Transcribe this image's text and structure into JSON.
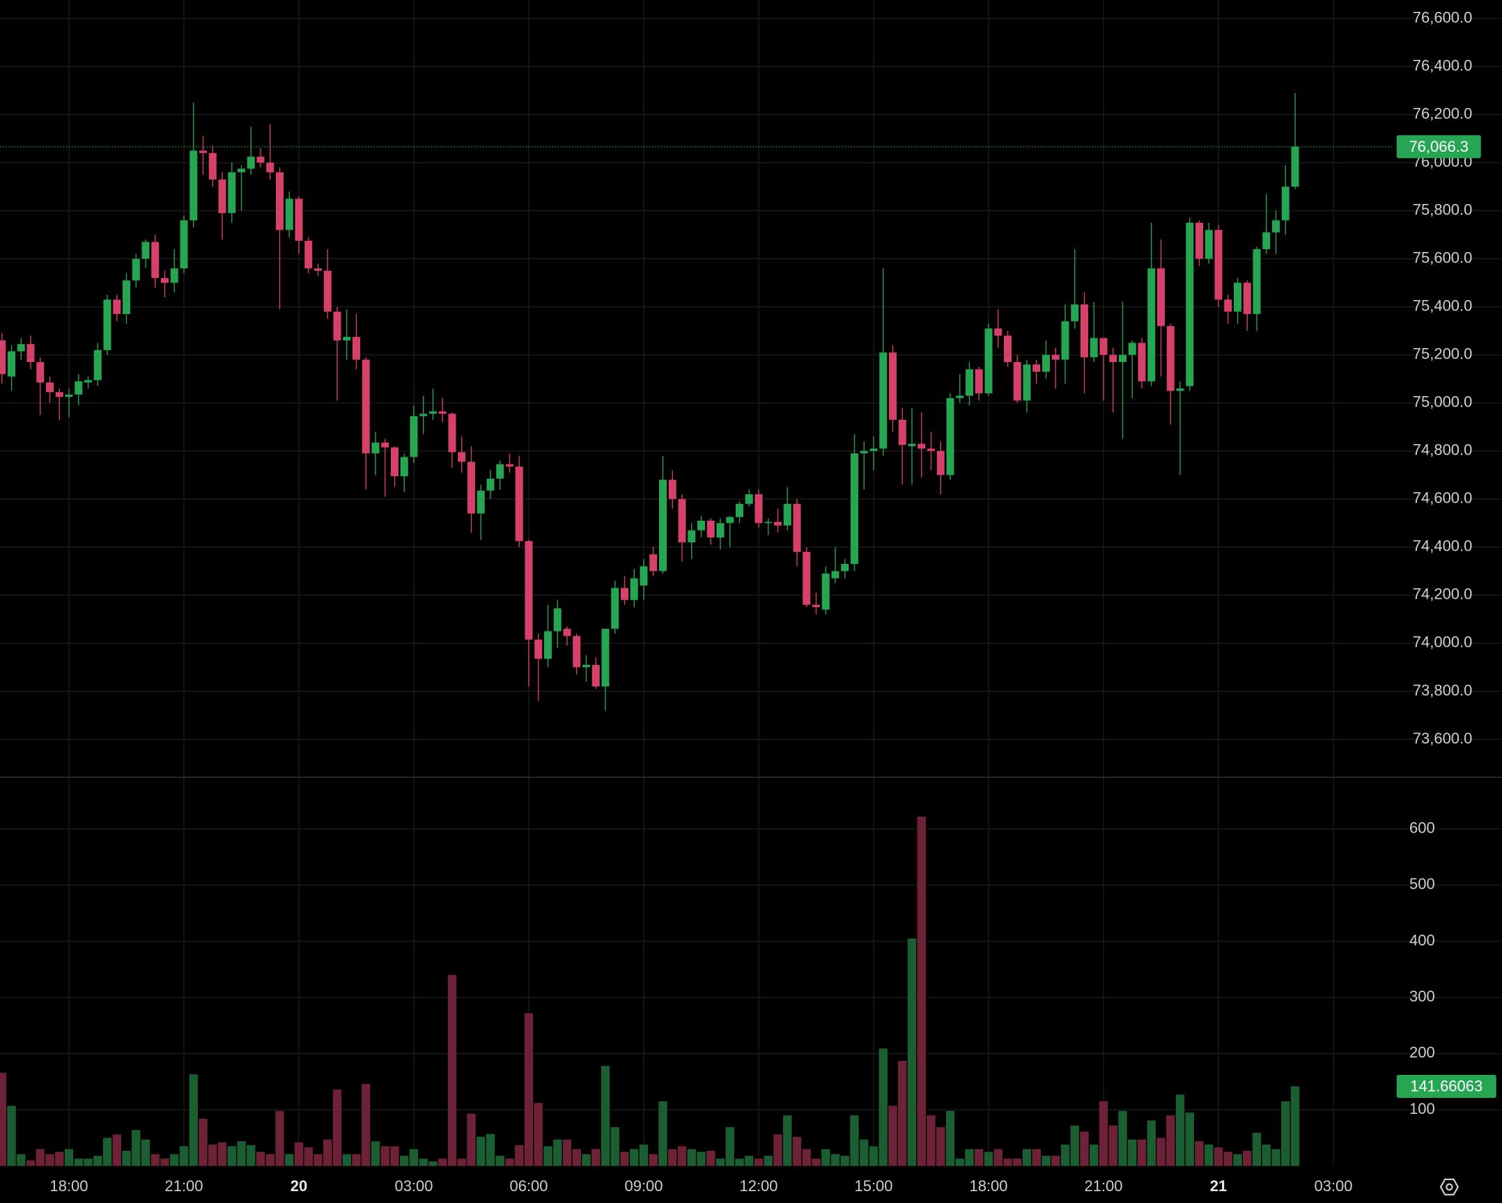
{
  "chart_data": {
    "type": "candlestick",
    "xlim": [
      -0.2,
      145.3
    ],
    "xticks": [
      {
        "value": 7,
        "label": "18:00"
      },
      {
        "value": 19,
        "label": "21:00"
      },
      {
        "value": 31,
        "label": "20"
      },
      {
        "value": 43,
        "label": "03:00"
      },
      {
        "value": 55,
        "label": "06:00"
      },
      {
        "value": 67,
        "label": "09:00"
      },
      {
        "value": 79,
        "label": "12:00"
      },
      {
        "value": 91,
        "label": "15:00"
      },
      {
        "value": 103,
        "label": "18:00"
      },
      {
        "value": 115,
        "label": "21:00"
      },
      {
        "value": 127,
        "label": "21"
      },
      {
        "value": 139,
        "label": "03:00"
      }
    ],
    "ylim": [
      73442,
      76677
    ],
    "yticks": [
      {
        "value": 73600,
        "label": "73,600.0"
      },
      {
        "value": 73800,
        "label": "73,800.0"
      },
      {
        "value": 74000,
        "label": "74,000.0"
      },
      {
        "value": 74200,
        "label": "74,200.0"
      },
      {
        "value": 74400,
        "label": "74,400.0"
      },
      {
        "value": 74600,
        "label": "74,600.0"
      },
      {
        "value": 74800,
        "label": "74,800.0"
      },
      {
        "value": 75000,
        "label": "75,000.0"
      },
      {
        "value": 75200,
        "label": "75,200.0"
      },
      {
        "value": 75400,
        "label": "75,400.0"
      },
      {
        "value": 75600,
        "label": "75,600.0"
      },
      {
        "value": 75800,
        "label": "75,800.0"
      },
      {
        "value": 76000,
        "label": "76,000.0"
      },
      {
        "value": 76200,
        "label": "76,200.0"
      },
      {
        "value": 76400,
        "label": "76,400.0"
      },
      {
        "value": 76600,
        "label": "76,600.0"
      }
    ],
    "volume_ylim": [
      0,
      692
    ],
    "volume_yticks": [
      100,
      200,
      300,
      400,
      500,
      600
    ],
    "grid": true,
    "up_color": "#26a653",
    "down_color": "#d6416a",
    "up_volume_color": "#1b5e31",
    "down_volume_color": "#6e2237",
    "price_marker": "76,066.3",
    "volume_marker": "141.66063",
    "open": [
      75260,
      75110,
      75215,
      75245,
      75170,
      75085,
      75045,
      75025,
      75035,
      75085,
      75095,
      75220,
      75430,
      75370,
      75510,
      75600,
      75670,
      75520,
      75500,
      75560,
      75760,
      76050,
      76040,
      75930,
      75790,
      75960,
      75975,
      76025,
      76000,
      75960,
      75720,
      75850,
      75675,
      75560,
      75550,
      75380,
      75260,
      75275,
      75180,
      74790,
      74835,
      74815,
      74695,
      74775,
      74945,
      74955,
      74965,
      74955,
      74795,
      74755,
      74540,
      74635,
      74685,
      74745,
      74735,
      74425,
      74015,
      73935,
      74050,
      74060,
      74030,
      73900,
      73910,
      73820,
      74060,
      74230,
      74180,
      74240,
      74370,
      74300,
      74680,
      74600,
      74420,
      74470,
      74510,
      74440,
      74500,
      74525,
      74580,
      74620,
      74500,
      74505,
      74490,
      74580,
      74380,
      74160,
      74140,
      74270,
      74300,
      74330,
      74790,
      74800,
      74810,
      75210,
      74930,
      74820,
      74830,
      74810,
      74800,
      74700,
      75020,
      75030,
      75140,
      75040,
      75310,
      75280,
      75170,
      75010,
      75160,
      75130,
      75200,
      75180,
      75340,
      75410,
      75190,
      75270,
      75200,
      75170,
      75200,
      75250,
      75090,
      75560,
      75320,
      75050,
      75070,
      75750,
      75600,
      75720,
      75430,
      75380,
      75500,
      75370,
      75640,
      75710,
      75760,
      75900
    ],
    "high": [
      75290,
      75240,
      75270,
      75280,
      75190,
      75110,
      75060,
      75060,
      75120,
      75110,
      75250,
      75450,
      75450,
      75540,
      75620,
      75680,
      75700,
      75550,
      75640,
      75780,
      76250,
      76110,
      76070,
      75960,
      76000,
      75990,
      76150,
      76060,
      76160,
      75980,
      75880,
      75860,
      75690,
      75580,
      75640,
      75400,
      75390,
      75370,
      75190,
      74880,
      74850,
      74820,
      74790,
      74990,
      75030,
      75060,
      75020,
      74960,
      74860,
      74820,
      74660,
      74720,
      74760,
      74790,
      74780,
      74430,
      74040,
      74160,
      74180,
      74070,
      74040,
      73950,
      73940,
      74060,
      74260,
      74280,
      74310,
      74350,
      74400,
      74780,
      74720,
      74620,
      74500,
      74530,
      74520,
      74520,
      74530,
      74590,
      74640,
      74640,
      74520,
      74560,
      74650,
      74600,
      74400,
      74210,
      74320,
      74400,
      74350,
      74870,
      74840,
      74860,
      75560,
      75240,
      74980,
      74980,
      74960,
      74880,
      74840,
      75040,
      75120,
      75170,
      75150,
      75330,
      75390,
      75300,
      75200,
      75180,
      75180,
      75260,
      75230,
      75410,
      75640,
      75460,
      75420,
      75270,
      75230,
      75420,
      75260,
      75270,
      75750,
      75680,
      75330,
      75090,
      75770,
      75760,
      75750,
      75740,
      75450,
      75520,
      75510,
      75650,
      75870,
      75800,
      75990,
      76290
    ],
    "low": [
      75080,
      75050,
      75180,
      75140,
      74950,
      75000,
      74930,
      74940,
      74990,
      75060,
      75070,
      75200,
      75340,
      75330,
      75480,
      75560,
      75480,
      75440,
      75460,
      75540,
      75730,
      75950,
      75900,
      75680,
      75750,
      75800,
      75950,
      75980,
      75930,
      75390,
      75690,
      75620,
      75540,
      75530,
      75350,
      75010,
      75180,
      75140,
      74640,
      74700,
      74610,
      74650,
      74630,
      74750,
      74870,
      74930,
      74920,
      74730,
      74710,
      74460,
      74430,
      74600,
      74640,
      74710,
      74400,
      73820,
      73760,
      73900,
      73980,
      73990,
      73870,
      73840,
      73810,
      73720,
      74040,
      74160,
      74150,
      74180,
      74280,
      74290,
      74560,
      74340,
      74350,
      74440,
      74410,
      74390,
      74400,
      74500,
      74570,
      74480,
      74450,
      74460,
      74470,
      74320,
      74150,
      74120,
      74120,
      74250,
      74270,
      74300,
      74640,
      74720,
      74780,
      74880,
      74660,
      74660,
      74690,
      74720,
      74620,
      74680,
      75000,
      74990,
      75010,
      75030,
      75230,
      75150,
      75000,
      74960,
      75080,
      75100,
      75060,
      75080,
      75310,
      75040,
      75170,
      75010,
      74960,
      74850,
      75020,
      75060,
      75070,
      75110,
      74910,
      74700,
      75050,
      75570,
      75580,
      75400,
      75330,
      75330,
      75300,
      75300,
      75620,
      75620,
      75700,
      75890
    ],
    "close": [
      75120,
      75215,
      75245,
      75170,
      75085,
      75045,
      75025,
      75035,
      75090,
      75095,
      75220,
      75430,
      75370,
      75510,
      75600,
      75670,
      75520,
      75500,
      75560,
      75760,
      76050,
      76040,
      75930,
      75790,
      75960,
      75975,
      76025,
      76000,
      75960,
      75720,
      75850,
      75675,
      75560,
      75550,
      75380,
      75260,
      75275,
      75180,
      74790,
      74835,
      74815,
      74695,
      74775,
      74945,
      74955,
      74965,
      74955,
      74795,
      74755,
      74540,
      74635,
      74685,
      74745,
      74735,
      74425,
      74015,
      73935,
      74050,
      74145,
      74030,
      73900,
      73910,
      73820,
      74060,
      74230,
      74180,
      74270,
      74320,
      74300,
      74680,
      74600,
      74420,
      74470,
      74510,
      74440,
      74500,
      74525,
      74580,
      74620,
      74500,
      74505,
      74490,
      74580,
      74380,
      74160,
      74150,
      74290,
      74300,
      74330,
      74790,
      74800,
      74810,
      75210,
      74930,
      74825,
      74830,
      74810,
      74800,
      74700,
      75020,
      75030,
      75140,
      75040,
      75310,
      75280,
      75170,
      75010,
      75160,
      75130,
      75200,
      75180,
      75340,
      75410,
      75190,
      75270,
      75200,
      75170,
      75200,
      75250,
      75090,
      75560,
      75320,
      75050,
      75060,
      75750,
      75600,
      75720,
      75430,
      75380,
      75500,
      75370,
      75640,
      75710,
      75760,
      75900,
      76066.3
    ],
    "volume": [
      166,
      107,
      21,
      10,
      30,
      21,
      25,
      30,
      13,
      13,
      18,
      50,
      56,
      27,
      64,
      47,
      21,
      13,
      21,
      35,
      163,
      84,
      38,
      42,
      35,
      44,
      37,
      25,
      21,
      98,
      21,
      42,
      33,
      21,
      47,
      136,
      21,
      21,
      146,
      44,
      35,
      35,
      18,
      30,
      13,
      8,
      13,
      340,
      13,
      93,
      52,
      57,
      18,
      13,
      37,
      272,
      112,
      35,
      47,
      47,
      30,
      21,
      30,
      178,
      69,
      25,
      30,
      38,
      21,
      115,
      30,
      35,
      30,
      25,
      27,
      13,
      69,
      13,
      18,
      13,
      18,
      56,
      90,
      52,
      30,
      13,
      30,
      21,
      18,
      90,
      47,
      35,
      209,
      107,
      187,
      405,
      622,
      90,
      69,
      98,
      13,
      30,
      30,
      25,
      30,
      13,
      13,
      30,
      30,
      18,
      18,
      38,
      72,
      61,
      38,
      115,
      72,
      98,
      47,
      47,
      81,
      50,
      90,
      127,
      95,
      44,
      38,
      33,
      25,
      21,
      27,
      59,
      38,
      30,
      115,
      141.66063
    ]
  }
}
